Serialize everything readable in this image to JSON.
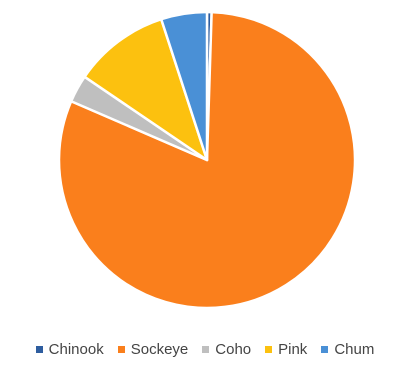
{
  "chart_data": {
    "type": "pie",
    "title": "",
    "categories": [
      "Chinook",
      "Sockeye",
      "Coho",
      "Pink",
      "Chum"
    ],
    "values": [
      0.5,
      81.0,
      3.0,
      10.5,
      5.0
    ],
    "colors": [
      "#2e5d9f",
      "#fa7f1c",
      "#bfbfbf",
      "#fcc10f",
      "#4a90d6"
    ],
    "legend_position": "bottom",
    "start_angle_deg": 0,
    "direction": "clockwise"
  }
}
